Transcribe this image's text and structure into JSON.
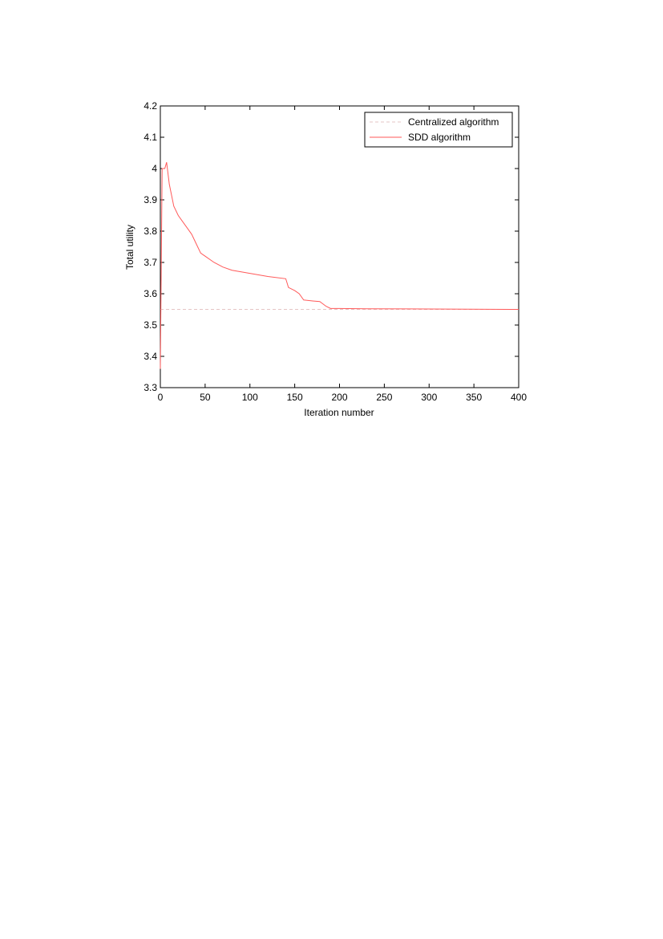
{
  "chart_data": {
    "type": "line",
    "xlabel": "Iteration number",
    "ylabel": "Total utility",
    "xlim": [
      0,
      400
    ],
    "ylim": [
      3.3,
      4.2
    ],
    "xticks": [
      0,
      50,
      100,
      150,
      200,
      250,
      300,
      350,
      400
    ],
    "yticks": [
      3.3,
      3.4,
      3.5,
      3.6,
      3.7,
      3.8,
      3.9,
      4,
      4.1,
      4.2
    ],
    "grid": false,
    "legend": "upper right",
    "series": [
      {
        "name": "Centralized algorithm",
        "color": "#e6c4c4",
        "style": "dashed",
        "x": [
          0,
          400
        ],
        "values": [
          3.55,
          3.55
        ]
      },
      {
        "name": "SDD algorithm",
        "color": "#ff5a5a",
        "style": "solid",
        "x": [
          0,
          2,
          5,
          7,
          10,
          15,
          20,
          25,
          30,
          35,
          40,
          45,
          50,
          60,
          70,
          80,
          100,
          120,
          140,
          143,
          150,
          155,
          160,
          170,
          178,
          185,
          190,
          200,
          230,
          400
        ],
        "values": [
          3.36,
          4.0,
          4.0,
          4.02,
          3.95,
          3.88,
          3.85,
          3.83,
          3.81,
          3.79,
          3.76,
          3.73,
          3.72,
          3.7,
          3.685,
          3.675,
          3.665,
          3.655,
          3.648,
          3.62,
          3.61,
          3.6,
          3.58,
          3.577,
          3.575,
          3.56,
          3.553,
          3.553,
          3.552,
          3.55
        ]
      }
    ]
  }
}
